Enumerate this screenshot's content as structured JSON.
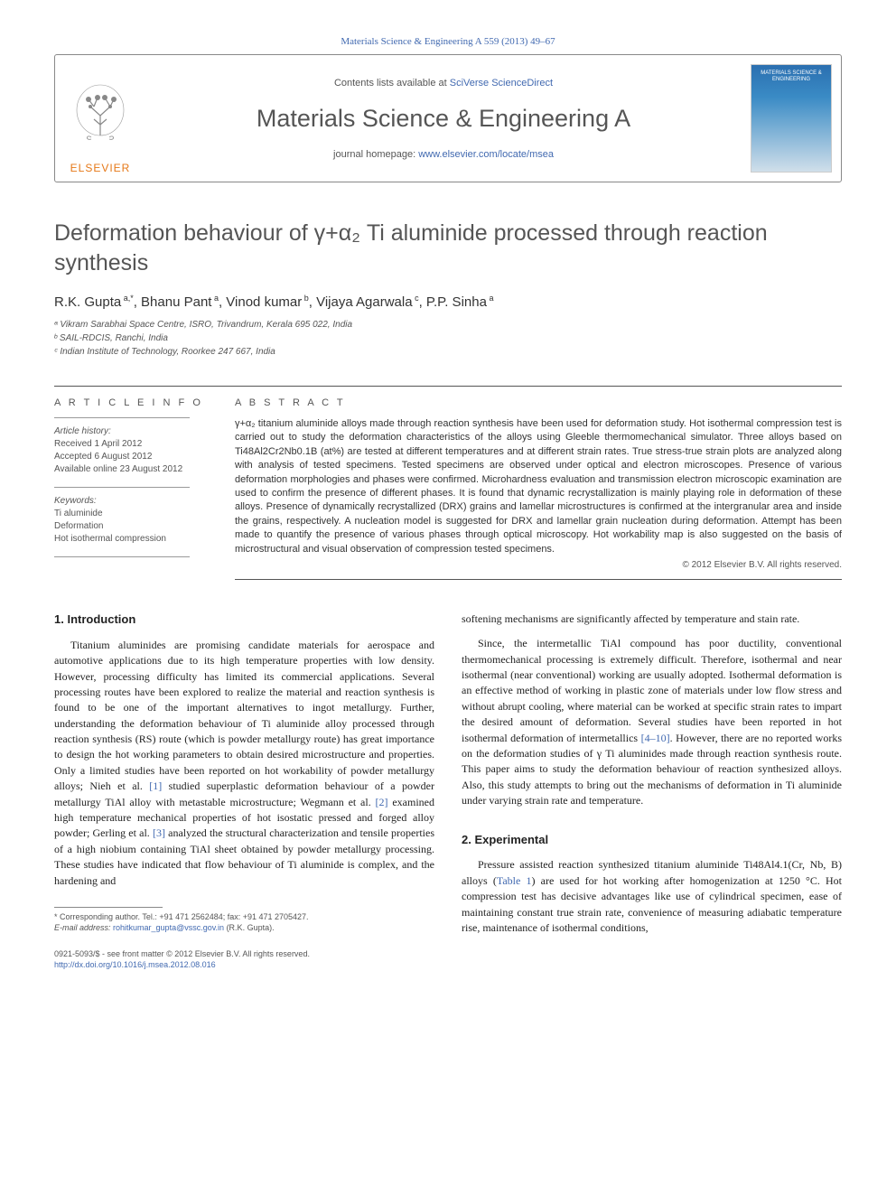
{
  "top_citation": "Materials Science & Engineering A 559 (2013) 49–67",
  "header": {
    "contents_prefix": "Contents lists available at ",
    "contents_linktext": "SciVerse ScienceDirect",
    "journal_title": "Materials Science & Engineering A",
    "homepage_prefix": "journal homepage: ",
    "homepage_linktext": "www.elsevier.com/locate/msea",
    "elsevier_label": "ELSEVIER",
    "cover_text": "MATERIALS\nSCIENCE &\nENGINEERING"
  },
  "article": {
    "title": "Deformation behaviour of γ+α₂ Ti aluminide processed through reaction synthesis",
    "authors_html": "R.K. Gupta<sup> a,*</sup>, Bhanu Pant<sup> a</sup>, Vinod kumar<sup> b</sup>, Vijaya Agarwala<sup> c</sup>, P.P. Sinha<sup> a</sup>",
    "affiliations": [
      "ᵃ Vikram Sarabhai Space Centre, ISRO, Trivandrum, Kerala 695 022, India",
      "ᵇ SAIL-RDCIS, Ranchi, India",
      "ᶜ Indian Institute of Technology, Roorkee 247 667, India"
    ]
  },
  "info": {
    "article_info_label": "A R T I C L E  I N F O",
    "history_label": "Article history:",
    "received": "Received 1 April 2012",
    "accepted": "Accepted 6 August 2012",
    "online": "Available online 23 August 2012",
    "keywords_label": "Keywords:",
    "keywords": [
      "Ti aluminide",
      "Deformation",
      "Hot isothermal compression"
    ]
  },
  "abstract": {
    "label": "A B S T R A C T",
    "text": "γ+α₂ titanium aluminide alloys made through reaction synthesis have been used for deformation study. Hot isothermal compression test is carried out to study the deformation characteristics of the alloys using Gleeble thermomechanical simulator. Three alloys based on Ti48Al2Cr2Nb0.1B (at%) are tested at different temperatures and at different strain rates. True stress-true strain plots are analyzed along with analysis of tested specimens. Tested specimens are observed under optical and electron microscopes. Presence of various deformation morphologies and phases were confirmed. Microhardness evaluation and transmission electron microscopic examination are used to confirm the presence of different phases. It is found that dynamic recrystallization is mainly playing role in deformation of these alloys. Presence of dynamically recrystallized (DRX) grains and lamellar microstructures is confirmed at the intergranular area and inside the grains, respectively. A nucleation model is suggested for DRX and lamellar grain nucleation during deformation. Attempt has been made to quantify the presence of various phases through optical microscopy. Hot workability map is also suggested on the basis of microstructural and visual observation of compression tested specimens.",
    "copyright": "© 2012 Elsevier B.V. All rights reserved."
  },
  "body": {
    "section1_heading": "1.  Introduction",
    "section2_heading": "2.  Experimental",
    "col1_p1a": "Titanium aluminides are promising candidate materials for aerospace and automotive applications due to its high temperature properties with low density. However, processing difficulty has limited its commercial applications. Several processing routes have been explored to realize the material and reaction synthesis is found to be one of the important alternatives to ingot metallurgy. Further, understanding the deformation behaviour of Ti aluminide alloy processed through reaction synthesis (RS) route (which is powder metallurgy route) has great importance to design the hot working parameters to obtain desired microstructure and properties. Only a limited studies have been reported on hot workability of powder metallurgy alloys; Nieh et al. ",
    "cite1": "[1]",
    "col1_p1b": " studied superplastic deformation behaviour of a powder metallurgy TiAl alloy with metastable microstructure; Wegmann et al. ",
    "cite2": "[2]",
    "col1_p1c": " examined high temperature mechanical properties of hot isostatic pressed and forged alloy powder; Gerling et al. ",
    "cite3": "[3]",
    "col1_p1d": " analyzed the structural characterization and tensile properties of a high niobium containing TiAl sheet obtained by powder metallurgy processing. These studies have indicated that flow behaviour of Ti aluminide is complex, and the hardening and",
    "col2_p0": "softening mechanisms are significantly affected by temperature and stain rate.",
    "col2_p1a": "Since, the intermetallic TiAl compound has poor ductility, conventional thermomechanical processing is extremely difficult. Therefore, isothermal and near isothermal (near conventional) working are usually adopted. Isothermal deformation is an effective method of working in plastic zone of materials under low flow stress and without abrupt cooling, where material can be worked at specific strain rates to impart the desired amount of deformation. Several studies have been reported in hot isothermal deformation of intermetallics ",
    "cite4": "[4–10]",
    "col2_p1b": ". However, there are no reported works on the deformation studies of γ Ti aluminides made through reaction synthesis route. This paper aims to study the deformation behaviour of reaction synthesized alloys. Also, this study attempts to bring out the mechanisms of deformation in Ti aluminide under varying strain rate and temperature.",
    "col2_p2a": "Pressure assisted reaction synthesized titanium aluminide Ti48Al4.1(Cr, Nb, B) alloys (",
    "table_link": "Table 1",
    "col2_p2b": ") are used for hot working after homogenization at 1250 °C. Hot compression test has decisive advantages like use of cylindrical specimen, ease of maintaining constant true strain rate, convenience of measuring adiabatic temperature rise, maintenance of isothermal conditions,"
  },
  "footnotes": {
    "corr": "* Corresponding author. Tel.: +91 471 2562484; fax: +91 471 2705427.",
    "email_label": "E-mail address: ",
    "email": "rohitkumar_gupta@vssc.gov.in",
    "email_suffix": " (R.K. Gupta)."
  },
  "bottom": {
    "issn": "0921-5093/$ - see front matter © 2012 Elsevier B.V. All rights reserved.",
    "doi": "http://dx.doi.org/10.1016/j.msea.2012.08.016"
  },
  "colors": {
    "link": "#4169b0",
    "elsevier_orange": "#e67817",
    "text": "#333333",
    "muted": "#555555",
    "rule": "#888888"
  }
}
